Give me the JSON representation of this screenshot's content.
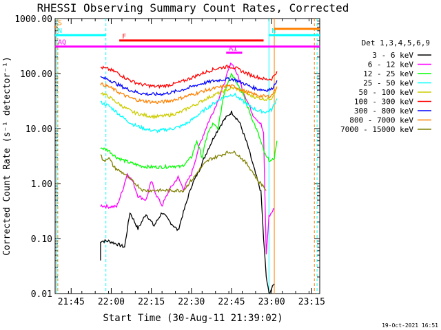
{
  "chart_data": {
    "type": "line",
    "title": "RHESSI Observing Summary Count Rates, Corrected",
    "xlabel": "Start Time (30-Aug-11 21:39:02)",
    "ylabel": "Corrected Count Rate (s⁻¹ detector⁻¹)",
    "footer_date": "19-Oct-2021 16:51",
    "y_scale": "log",
    "ylim": [
      0.01,
      1000
    ],
    "y_ticks": [
      {
        "value": 1000,
        "label": "1000.00"
      },
      {
        "value": 100,
        "label": "100.00"
      },
      {
        "value": 10,
        "label": "10.00"
      },
      {
        "value": 1,
        "label": "1.00"
      },
      {
        "value": 0.1,
        "label": "0.10"
      },
      {
        "value": 0.01,
        "label": "0.01"
      }
    ],
    "x_unit": "minutes after 21:39:02",
    "xlim": [
      0,
      99
    ],
    "x_ticks": [
      {
        "value": 6,
        "label": "21:45"
      },
      {
        "value": 21,
        "label": "22:00"
      },
      {
        "value": 36,
        "label": "22:15"
      },
      {
        "value": 51,
        "label": "22:30"
      },
      {
        "value": 66,
        "label": "22:45"
      },
      {
        "value": 81,
        "label": "23:00"
      },
      {
        "value": 96,
        "label": "23:15"
      }
    ],
    "legend": {
      "header": "Det 1,3,4,5,6,9",
      "position": "right"
    },
    "series": [
      {
        "name": "3 - 6 keV",
        "color": "#000000",
        "points": [
          [
            17,
            0.04
          ],
          [
            17,
            0.09
          ],
          [
            20,
            0.09
          ],
          [
            23,
            0.08
          ],
          [
            26,
            0.07
          ],
          [
            28,
            0.3
          ],
          [
            31,
            0.15
          ],
          [
            34,
            0.28
          ],
          [
            37,
            0.17
          ],
          [
            40,
            0.3
          ],
          [
            43,
            0.2
          ],
          [
            46,
            0.14
          ],
          [
            48,
            0.3
          ],
          [
            51,
            0.9
          ],
          [
            54,
            1.8
          ],
          [
            57,
            4
          ],
          [
            60,
            8
          ],
          [
            63,
            14
          ],
          [
            66,
            20
          ],
          [
            69,
            13
          ],
          [
            72,
            5
          ],
          [
            75,
            1.5
          ],
          [
            77,
            0.7
          ],
          [
            78,
            0.1
          ],
          [
            79,
            0.02
          ],
          [
            80,
            0.01
          ],
          [
            82,
            0.015
          ]
        ]
      },
      {
        "name": "6 - 12 keV",
        "color": "#ff00ff",
        "points": [
          [
            17,
            0.4
          ],
          [
            20,
            0.38
          ],
          [
            23,
            0.38
          ],
          [
            25,
            0.7
          ],
          [
            27,
            1.5
          ],
          [
            29,
            1.1
          ],
          [
            31,
            0.6
          ],
          [
            34,
            0.5
          ],
          [
            36,
            1.1
          ],
          [
            38,
            0.6
          ],
          [
            40,
            0.4
          ],
          [
            43,
            0.8
          ],
          [
            46,
            1.3
          ],
          [
            48,
            0.8
          ],
          [
            51,
            1.5
          ],
          [
            54,
            5
          ],
          [
            57,
            12
          ],
          [
            60,
            25
          ],
          [
            63,
            60
          ],
          [
            65,
            120
          ],
          [
            66,
            160
          ],
          [
            68,
            100
          ],
          [
            71,
            40
          ],
          [
            74,
            18
          ],
          [
            77,
            12
          ],
          [
            78,
            8
          ],
          [
            79,
            0.05
          ],
          [
            80,
            0.25
          ],
          [
            82,
            0.35
          ]
        ]
      },
      {
        "name": "12 - 25 keV",
        "color": "#00ff00",
        "points": [
          [
            17,
            4.5
          ],
          [
            20,
            4
          ],
          [
            23,
            3
          ],
          [
            26,
            2.6
          ],
          [
            29,
            2.3
          ],
          [
            32,
            2.1
          ],
          [
            35,
            2
          ],
          [
            38,
            2
          ],
          [
            41,
            2
          ],
          [
            44,
            2.1
          ],
          [
            47,
            2
          ],
          [
            49,
            2.4
          ],
          [
            51,
            3
          ],
          [
            53,
            6
          ],
          [
            55,
            3
          ],
          [
            57,
            8
          ],
          [
            59,
            12
          ],
          [
            61,
            10
          ],
          [
            63,
            40
          ],
          [
            65,
            80
          ],
          [
            66,
            100
          ],
          [
            68,
            70
          ],
          [
            70,
            45
          ],
          [
            72,
            25
          ],
          [
            74,
            14
          ],
          [
            76,
            8
          ],
          [
            78,
            4
          ],
          [
            79,
            3
          ],
          [
            81,
            2.5
          ],
          [
            82,
            3
          ],
          [
            83,
            6
          ]
        ]
      },
      {
        "name": "25 - 50 keV",
        "color": "#00ffff",
        "points": [
          [
            17,
            30
          ],
          [
            20,
            26
          ],
          [
            23,
            20
          ],
          [
            26,
            15
          ],
          [
            29,
            12
          ],
          [
            32,
            10.5
          ],
          [
            35,
            9.5
          ],
          [
            38,
            9
          ],
          [
            41,
            9.5
          ],
          [
            44,
            10
          ],
          [
            47,
            11
          ],
          [
            50,
            13
          ],
          [
            53,
            17
          ],
          [
            56,
            22
          ],
          [
            59,
            28
          ],
          [
            62,
            35
          ],
          [
            65,
            40
          ],
          [
            67,
            42
          ],
          [
            70,
            32
          ],
          [
            73,
            25
          ],
          [
            76,
            21
          ],
          [
            79,
            20
          ],
          [
            81,
            22
          ],
          [
            83,
            35
          ]
        ]
      },
      {
        "name": "50 - 100 keV",
        "color": "#cccc00",
        "points": [
          [
            17,
            45
          ],
          [
            20,
            38
          ],
          [
            23,
            30
          ],
          [
            26,
            24
          ],
          [
            29,
            20
          ],
          [
            32,
            18
          ],
          [
            35,
            17
          ],
          [
            38,
            16.5
          ],
          [
            41,
            17
          ],
          [
            44,
            18
          ],
          [
            47,
            20
          ],
          [
            50,
            24
          ],
          [
            53,
            28
          ],
          [
            56,
            34
          ],
          [
            59,
            40
          ],
          [
            62,
            46
          ],
          [
            65,
            52
          ],
          [
            67,
            55
          ],
          [
            70,
            48
          ],
          [
            73,
            40
          ],
          [
            76,
            36
          ],
          [
            79,
            34
          ],
          [
            81,
            36
          ],
          [
            83,
            55
          ]
        ]
      },
      {
        "name": "100 - 300 keV",
        "color": "#ff0000",
        "points": [
          [
            17,
            130
          ],
          [
            20,
            120
          ],
          [
            23,
            105
          ],
          [
            26,
            85
          ],
          [
            29,
            72
          ],
          [
            32,
            64
          ],
          [
            35,
            60
          ],
          [
            38,
            58
          ],
          [
            41,
            60
          ],
          [
            44,
            64
          ],
          [
            47,
            70
          ],
          [
            50,
            80
          ],
          [
            53,
            92
          ],
          [
            56,
            105
          ],
          [
            59,
            118
          ],
          [
            62,
            128
          ],
          [
            65,
            135
          ],
          [
            67,
            130
          ],
          [
            70,
            110
          ],
          [
            73,
            95
          ],
          [
            76,
            85
          ],
          [
            79,
            78
          ],
          [
            81,
            80
          ],
          [
            83,
            110
          ]
        ]
      },
      {
        "name": "300 - 800 keV",
        "color": "#0000ff",
        "points": [
          [
            17,
            85
          ],
          [
            20,
            78
          ],
          [
            23,
            65
          ],
          [
            26,
            55
          ],
          [
            29,
            48
          ],
          [
            32,
            44
          ],
          [
            35,
            42
          ],
          [
            38,
            42
          ],
          [
            41,
            43
          ],
          [
            44,
            46
          ],
          [
            47,
            50
          ],
          [
            50,
            55
          ],
          [
            53,
            62
          ],
          [
            56,
            68
          ],
          [
            59,
            73
          ],
          [
            62,
            77
          ],
          [
            65,
            80
          ],
          [
            67,
            78
          ],
          [
            70,
            68
          ],
          [
            73,
            58
          ],
          [
            76,
            52
          ],
          [
            79,
            50
          ],
          [
            81,
            52
          ],
          [
            83,
            75
          ]
        ]
      },
      {
        "name": "800 - 7000 keV",
        "color": "#ff8000",
        "points": [
          [
            17,
            65
          ],
          [
            20,
            58
          ],
          [
            23,
            48
          ],
          [
            26,
            40
          ],
          [
            29,
            35
          ],
          [
            32,
            32
          ],
          [
            35,
            31
          ],
          [
            38,
            30
          ],
          [
            41,
            31
          ],
          [
            44,
            33
          ],
          [
            47,
            36
          ],
          [
            50,
            40
          ],
          [
            53,
            44
          ],
          [
            56,
            49
          ],
          [
            59,
            53
          ],
          [
            62,
            57
          ],
          [
            65,
            60
          ],
          [
            67,
            58
          ],
          [
            70,
            50
          ],
          [
            73,
            44
          ],
          [
            76,
            40
          ],
          [
            79,
            38
          ],
          [
            81,
            40
          ],
          [
            83,
            58
          ]
        ]
      },
      {
        "name": "7000 - 15000 keV",
        "color": "#808000",
        "points": [
          [
            17,
            3.5
          ],
          [
            18,
            2.5
          ],
          [
            20,
            3
          ],
          [
            22,
            2
          ],
          [
            24,
            1.7
          ],
          [
            26,
            1.5
          ],
          [
            28,
            1.2
          ],
          [
            30,
            1
          ],
          [
            33,
            0.75
          ],
          [
            36,
            0.75
          ],
          [
            39,
            0.75
          ],
          [
            42,
            0.75
          ],
          [
            45,
            0.75
          ],
          [
            48,
            0.75
          ],
          [
            50,
            1
          ],
          [
            52,
            1.3
          ],
          [
            54,
            1.8
          ],
          [
            56,
            2.3
          ],
          [
            58,
            2.8
          ],
          [
            60,
            3
          ],
          [
            62,
            3.3
          ],
          [
            64,
            3.6
          ],
          [
            66,
            3.8
          ],
          [
            68,
            3.5
          ],
          [
            70,
            2.8
          ],
          [
            72,
            2.2
          ],
          [
            74,
            1.6
          ],
          [
            76,
            1.1
          ],
          [
            78,
            0.9
          ],
          [
            79,
            0.75
          ]
        ]
      }
    ],
    "annotations": {
      "bars": [
        {
          "label": "S",
          "color": "#ff8000",
          "x": [
            0,
            0.5
          ],
          "y": 700
        },
        {
          "label": "N",
          "color": "#00ffff",
          "x": [
            0,
            19
          ],
          "y": 500
        },
        {
          "label": "N",
          "color": "#00ffff",
          "x": [
            80,
            99
          ],
          "y": 500
        },
        {
          "label": "F",
          "color": "#ff0000",
          "x": [
            24,
            78
          ],
          "y": 400
        },
        {
          "label": "",
          "color": "#ff8000",
          "x": [
            82,
            99
          ],
          "y": 650
        },
        {
          "label": "AQ",
          "color": "#ff00ff",
          "x": [
            0,
            99
          ],
          "y": 310
        },
        {
          "label": "A1",
          "color": "#ff00ff",
          "x": [
            64,
            70
          ],
          "y": 240
        }
      ],
      "vlines": [
        {
          "x": 0.5,
          "color": "#00ffff",
          "style": "solid"
        },
        {
          "x": 1,
          "color": "#ff8000",
          "style": "dashed"
        },
        {
          "x": 19,
          "color": "#00ffff",
          "style": "dashed"
        },
        {
          "x": 80,
          "color": "#00ffff",
          "style": "solid"
        },
        {
          "x": 82,
          "color": "#ff8000",
          "style": "solid"
        },
        {
          "x": 97,
          "color": "#ff8000",
          "style": "dashed"
        },
        {
          "x": 98,
          "color": "#00ffff",
          "style": "dashed"
        }
      ]
    }
  }
}
